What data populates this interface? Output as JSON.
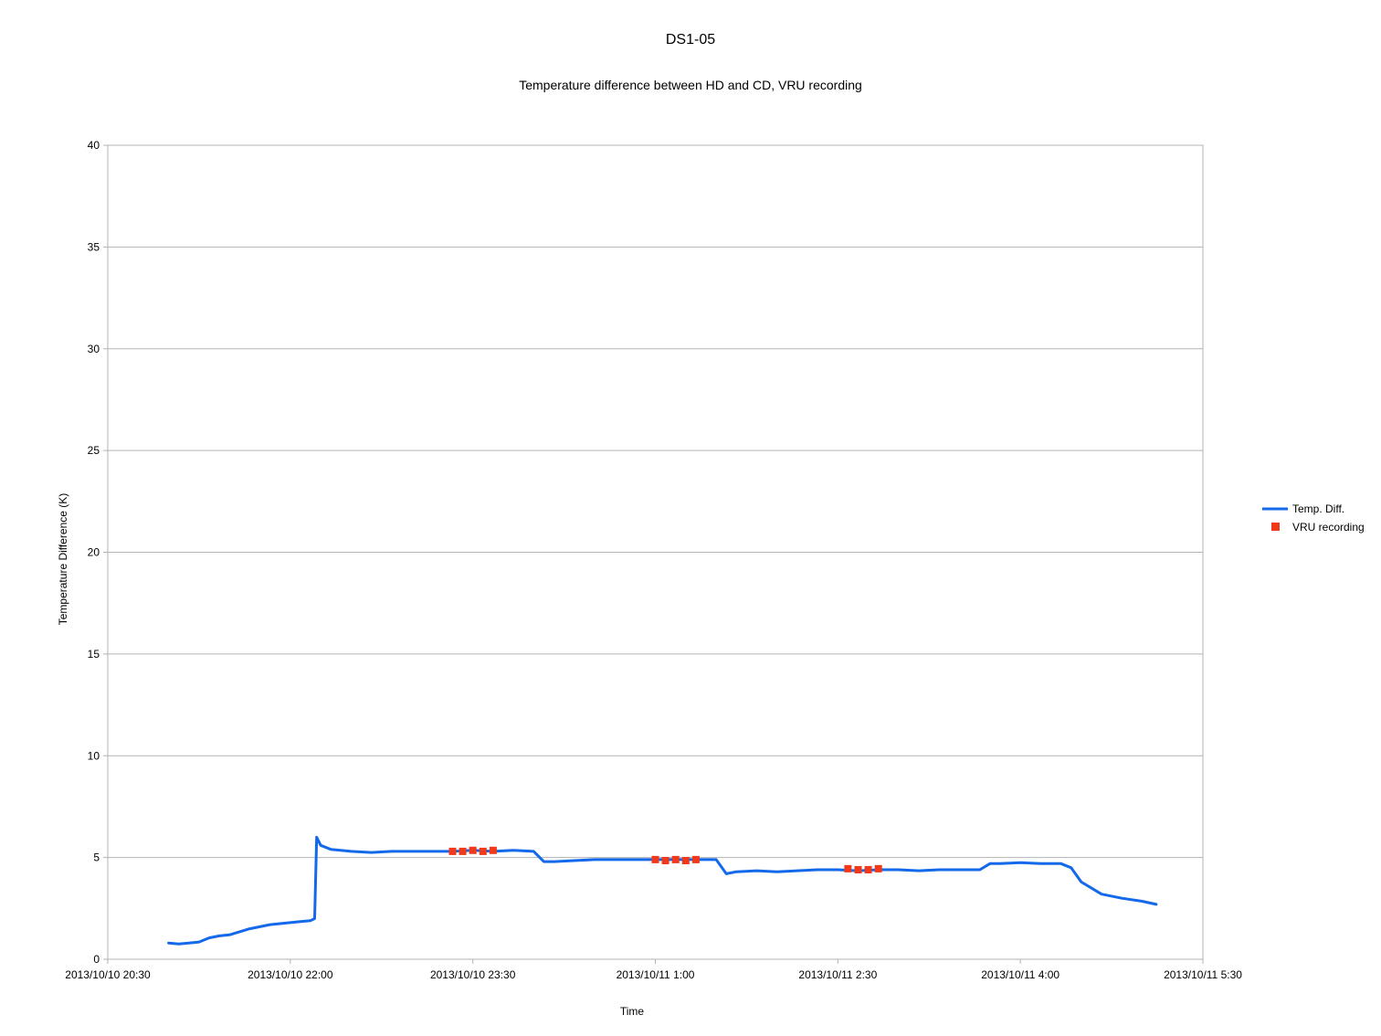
{
  "chart_data": {
    "type": "line",
    "title": "DS1-05",
    "subtitle": "Temperature difference between HD and CD, VRU recording",
    "xlabel": "Time",
    "ylabel": "Temperature Difference (K)",
    "xlim": [
      "2013/10/10 20:30",
      "2013/10/11 5:30"
    ],
    "ylim": [
      0,
      40
    ],
    "x_ticks": [
      "2013/10/10 20:30",
      "2013/10/10 22:00",
      "2013/10/10 23:30",
      "2013/10/11 1:00",
      "2013/10/11 2:30",
      "2013/10/11 4:00",
      "2013/10/11 5:30"
    ],
    "y_ticks": [
      "0",
      "5",
      "10",
      "15",
      "20",
      "25",
      "30",
      "35",
      "40"
    ],
    "grid": "horizontal",
    "legend_position": "right",
    "series": [
      {
        "name": "Temp. Diff.",
        "type": "line",
        "color": "#1369EA",
        "x": [
          "2013/10/10 21:00",
          "2013/10/10 21:05",
          "2013/10/10 21:10",
          "2013/10/10 21:15",
          "2013/10/10 21:20",
          "2013/10/10 21:25",
          "2013/10/10 21:30",
          "2013/10/10 21:35",
          "2013/10/10 21:40",
          "2013/10/10 21:45",
          "2013/10/10 21:50",
          "2013/10/10 21:55",
          "2013/10/10 22:00",
          "2013/10/10 22:05",
          "2013/10/10 22:10",
          "2013/10/10 22:12",
          "2013/10/10 22:13",
          "2013/10/10 22:15",
          "2013/10/10 22:20",
          "2013/10/10 22:30",
          "2013/10/10 22:40",
          "2013/10/10 22:50",
          "2013/10/10 23:00",
          "2013/10/10 23:10",
          "2013/10/10 23:20",
          "2013/10/10 23:30",
          "2013/10/10 23:40",
          "2013/10/10 23:50",
          "2013/10/11 0:00",
          "2013/10/11 0:05",
          "2013/10/11 0:10",
          "2013/10/11 0:20",
          "2013/10/11 0:30",
          "2013/10/11 0:40",
          "2013/10/11 0:50",
          "2013/10/11 1:00",
          "2013/10/11 1:10",
          "2013/10/11 1:20",
          "2013/10/11 1:30",
          "2013/10/11 1:35",
          "2013/10/11 1:40",
          "2013/10/11 1:50",
          "2013/10/11 2:00",
          "2013/10/11 2:10",
          "2013/10/11 2:20",
          "2013/10/11 2:30",
          "2013/10/11 2:40",
          "2013/10/11 2:50",
          "2013/10/11 3:00",
          "2013/10/11 3:10",
          "2013/10/11 3:20",
          "2013/10/11 3:30",
          "2013/10/11 3:40",
          "2013/10/11 3:45",
          "2013/10/11 3:50",
          "2013/10/11 4:00",
          "2013/10/11 4:10",
          "2013/10/11 4:20",
          "2013/10/11 4:25",
          "2013/10/11 4:30",
          "2013/10/11 4:40",
          "2013/10/11 4:50",
          "2013/10/11 5:00",
          "2013/10/11 5:07"
        ],
        "y": [
          0.8,
          0.75,
          0.8,
          0.85,
          1.05,
          1.15,
          1.2,
          1.35,
          1.5,
          1.6,
          1.7,
          1.75,
          1.8,
          1.85,
          1.9,
          2.0,
          6.0,
          5.6,
          5.4,
          5.3,
          5.25,
          5.3,
          5.3,
          5.3,
          5.3,
          5.35,
          5.3,
          5.35,
          5.3,
          4.8,
          4.8,
          4.85,
          4.9,
          4.9,
          4.9,
          4.9,
          4.9,
          4.9,
          4.9,
          4.2,
          4.3,
          4.35,
          4.3,
          4.35,
          4.4,
          4.4,
          4.35,
          4.4,
          4.4,
          4.35,
          4.4,
          4.4,
          4.4,
          4.7,
          4.7,
          4.75,
          4.7,
          4.7,
          4.5,
          3.8,
          3.2,
          3.0,
          2.85,
          2.7
        ]
      },
      {
        "name": "VRU recording",
        "type": "marker",
        "color": "#F0381A",
        "x": [
          "2013/10/10 23:20",
          "2013/10/10 23:25",
          "2013/10/10 23:30",
          "2013/10/10 23:35",
          "2013/10/10 23:40",
          "2013/10/11 1:00",
          "2013/10/11 1:05",
          "2013/10/11 1:10",
          "2013/10/11 1:15",
          "2013/10/11 1:20",
          "2013/10/11 2:35",
          "2013/10/11 2:40",
          "2013/10/11 2:45",
          "2013/10/11 2:50"
        ],
        "y": [
          5.3,
          5.3,
          5.35,
          5.3,
          5.35,
          4.9,
          4.85,
          4.9,
          4.85,
          4.9,
          4.45,
          4.4,
          4.4,
          4.45
        ]
      }
    ]
  }
}
